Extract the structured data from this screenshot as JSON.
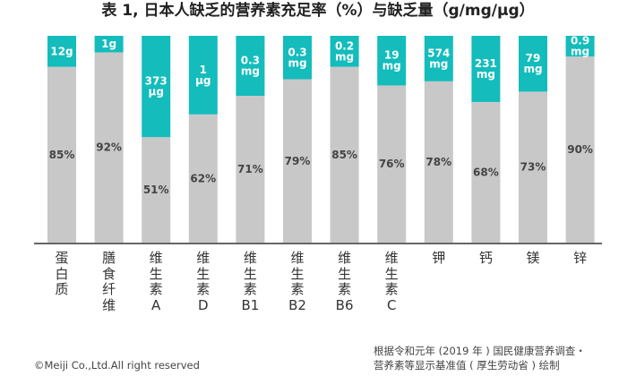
{
  "chart_data": {
    "type": "bar",
    "stacked": true,
    "title": "表 1, 日本人缺乏的营养素充足率（%）与缺乏量（g/mg/μg）",
    "categories": [
      "蛋\n白\n质",
      "膳\n食\n纤\n维",
      "维\n生\n素\nA",
      "维\n生\n素\nD",
      "维\n生\n素\nB1",
      "维\n生\n素\nB2",
      "维\n生\n素\nB6",
      "维\n生\n素\nC",
      "钾",
      "钙",
      "镁",
      "锌"
    ],
    "series": [
      {
        "values": [
          85,
          92,
          51,
          62,
          71,
          79,
          85,
          76,
          78,
          68,
          73,
          90
        ],
        "labels": [
          "85%",
          "92%",
          "51%",
          "62%",
          "71%",
          "79%",
          "85%",
          "76%",
          "78%",
          "68%",
          "73%",
          "90%"
        ],
        "color": "#c8c8c8"
      },
      {
        "values": [
          15,
          8,
          49,
          38,
          29,
          21,
          15,
          24,
          22,
          32,
          27,
          10
        ],
        "labels": [
          "12g",
          "1g",
          "373\nμg",
          "1\nμg",
          "0.3\nmg",
          "0.3\nmg",
          "0.2\nmg",
          "19\nmg",
          "574\nmg",
          "231\nmg",
          "79\nmg",
          "0.9\nmg"
        ],
        "color": "#14bcbc"
      }
    ],
    "ylim": [
      0,
      100
    ],
    "grid": false,
    "legend": "none"
  },
  "footer": {
    "copyright": "©Meiji Co.,Ltd.All right reserved",
    "source_line1": "根据令和元年 (2019 年 ) 国民健康营养调查・",
    "source_line2": "营养素等显示基准值 ( 厚生劳动省 ) 绘制"
  }
}
